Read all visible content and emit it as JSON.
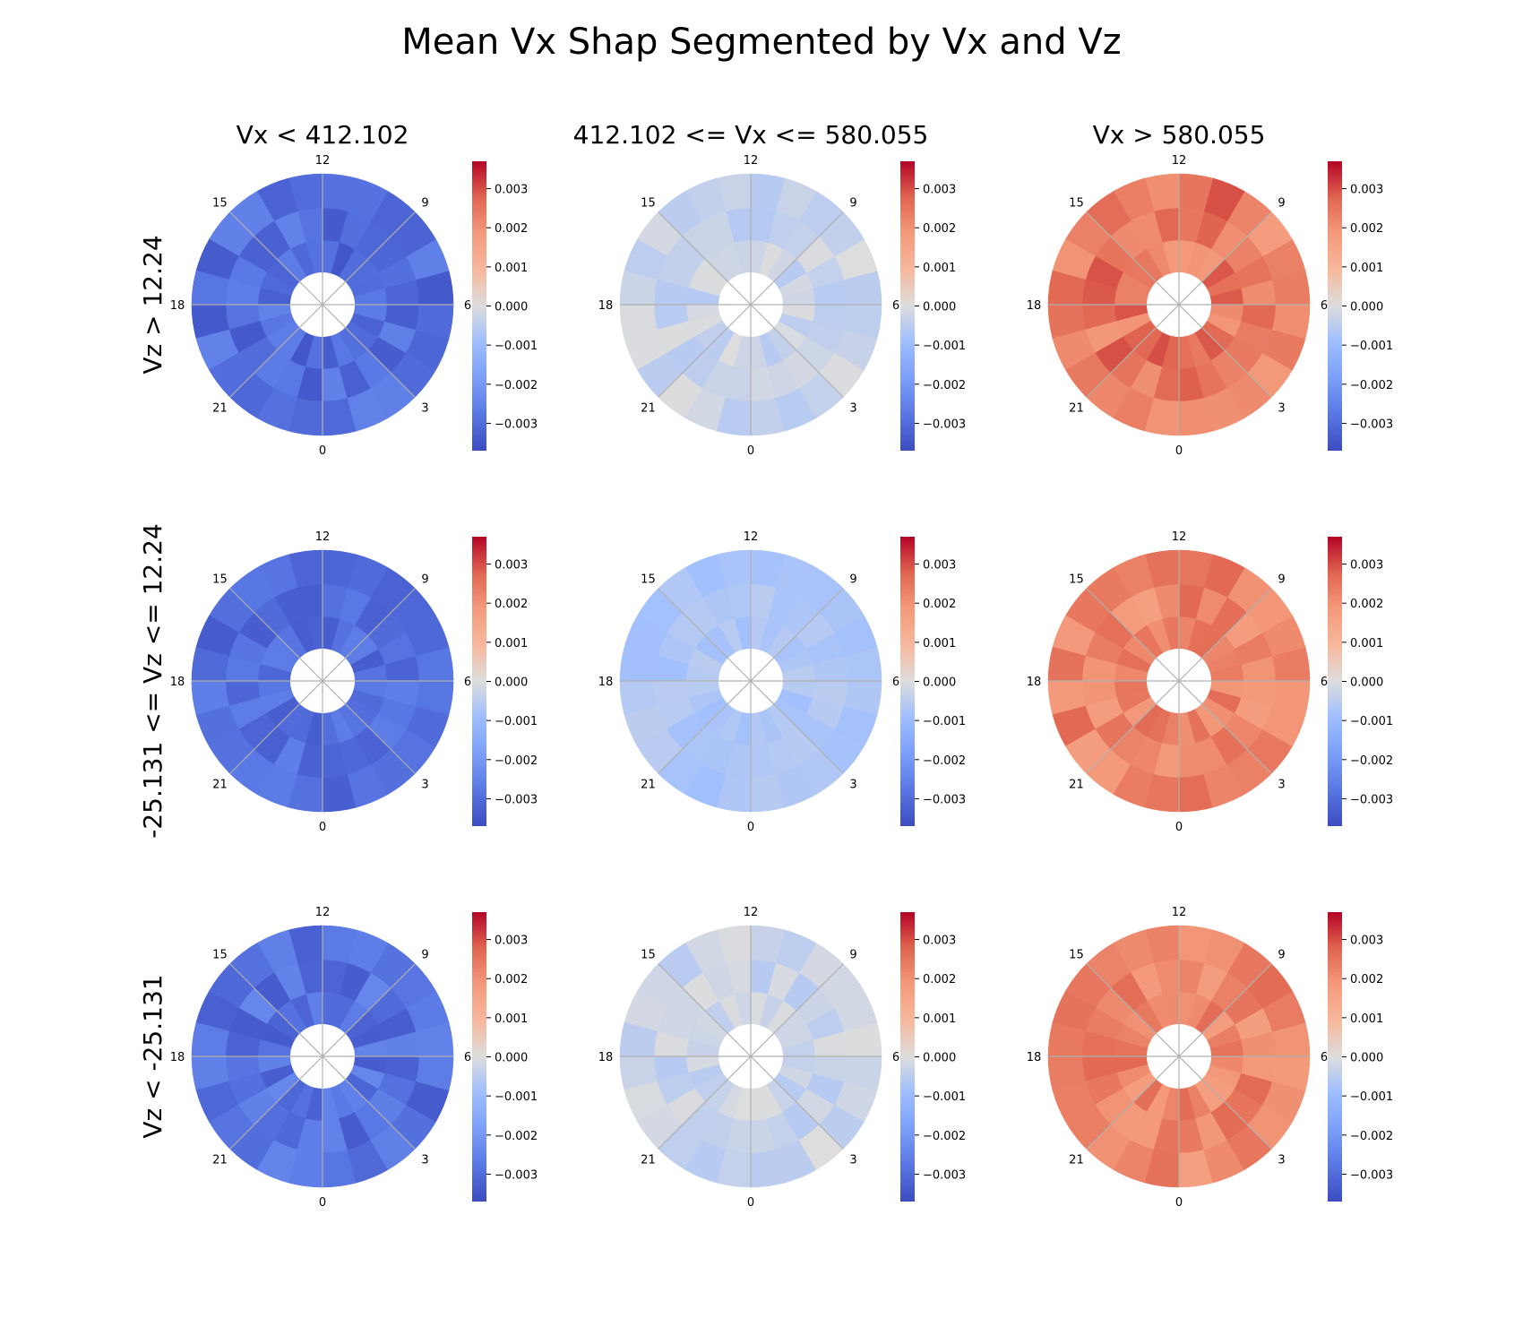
{
  "title": "Mean Vx Shap Segmented by Vx and Vz",
  "col_titles": [
    "Vx < 412.102",
    "412.102 <= Vx <= 580.055",
    "Vx > 580.055"
  ],
  "row_titles": [
    "Vz > 12.24",
    "-25.131 <= Vz <= 12.24",
    "Vz < -25.131"
  ],
  "chart_data": {
    "type": "heatmap",
    "subtype": "polar (clock-hour dial, 0 at bottom, 12 at top, 6 right, 18 left)",
    "title": "Mean Vx Shap Segmented by Vx and Vz",
    "angular_tick_labels": [
      "0",
      "3",
      "6",
      "9",
      "12",
      "15",
      "18",
      "21"
    ],
    "colorbar": {
      "colormap": "coolwarm",
      "vmin": -0.0037,
      "vmax": 0.0037,
      "tick_labels": [
        "0.003",
        "0.002",
        "0.001",
        "0.000",
        "−0.001",
        "−0.002",
        "−0.003"
      ],
      "tick_values": [
        0.003,
        0.002,
        0.001,
        0.0,
        -0.001,
        -0.002,
        -0.003
      ]
    },
    "panels": [
      {
        "row": "Vz > 12.24",
        "col": "Vx < 412.102",
        "mean_value": -0.003,
        "spread": 0.0005
      },
      {
        "row": "Vz > 12.24",
        "col": "412.102 <= Vx <= 580.055",
        "mean_value": -0.0003,
        "spread": 0.0003
      },
      {
        "row": "Vz > 12.24",
        "col": "Vx > 580.055",
        "mean_value": 0.0024,
        "spread": 0.0006
      },
      {
        "row": "-25.131 <= Vz <= 12.24",
        "col": "Vx < 412.102",
        "mean_value": -0.003,
        "spread": 0.0004
      },
      {
        "row": "-25.131 <= Vz <= 12.24",
        "col": "412.102 <= Vx <= 580.055",
        "mean_value": -0.0007,
        "spread": 0.0002
      },
      {
        "row": "-25.131 <= Vz <= 12.24",
        "col": "Vx > 580.055",
        "mean_value": 0.0022,
        "spread": 0.0005
      },
      {
        "row": "Vz < -25.131",
        "col": "Vx < 412.102",
        "mean_value": -0.0029,
        "spread": 0.0005
      },
      {
        "row": "Vz < -25.131",
        "col": "412.102 <= Vx <= 580.055",
        "mean_value": -0.0003,
        "spread": 0.0003
      },
      {
        "row": "Vz < -25.131",
        "col": "Vx > 580.055",
        "mean_value": 0.0022,
        "spread": 0.0005
      }
    ]
  }
}
